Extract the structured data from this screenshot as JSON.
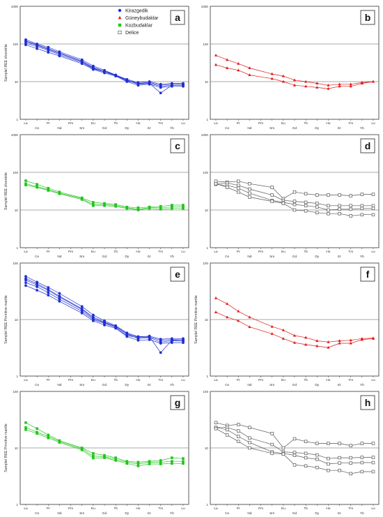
{
  "legend": {
    "items": [
      {
        "label": "Kirazgedik",
        "color": "#1f2fd1",
        "marker": "circle"
      },
      {
        "label": "Güneybudaklar",
        "color": "#e01a1a",
        "marker": "triangle"
      },
      {
        "label": "Kozbudaklar",
        "color": "#22c51c",
        "marker": "square"
      },
      {
        "label": "Delice",
        "color": "#555555",
        "marker": "open-square"
      }
    ]
  },
  "chart_data": [
    {
      "panel_label": "a",
      "type": "line",
      "log_y": true,
      "ylim": [
        1,
        1000
      ],
      "y_ticks": [
        "1",
        "10",
        "100",
        "1000"
      ],
      "gridlines_at": [
        10,
        100
      ],
      "ylabel": "Sample/ REE chondrite",
      "xlabel": "",
      "x_upper": [
        "La",
        "Pr",
        "Pm",
        "Eu",
        "Tb",
        "Ho",
        "Tm",
        "Lu"
      ],
      "x_lower": [
        "Ce",
        "Nd",
        "Sm",
        "Gd",
        "Dy",
        "Er",
        "Yb"
      ],
      "categories": [
        "La",
        "Ce",
        "Pr",
        "Nd",
        "Pm",
        "Sm",
        "Eu",
        "Gd",
        "Tb",
        "Dy",
        "Ho",
        "Er",
        "Tm",
        "Yb",
        "Lu"
      ],
      "color": "#1f2fd1",
      "marker": "circle",
      "series": [
        {
          "values": [
            130,
            100,
            82,
            62,
            null,
            38,
            26,
            20,
            15,
            11,
            9,
            9,
            5,
            8,
            8
          ]
        },
        {
          "values": [
            120,
            95,
            75,
            58,
            null,
            35,
            24,
            19,
            15,
            11,
            8.5,
            9,
            7.5,
            8,
            8
          ]
        },
        {
          "values": [
            105,
            85,
            68,
            52,
            null,
            32,
            22,
            18,
            14.5,
            10.5,
            9,
            9.5,
            8,
            8.5,
            8.5
          ]
        },
        {
          "values": [
            95,
            75,
            60,
            48,
            null,
            30,
            21,
            17,
            14,
            10,
            8,
            8.5,
            7,
            7.5,
            7.5
          ]
        },
        {
          "values": [
            115,
            92,
            72,
            56,
            null,
            34,
            23,
            18,
            15,
            11.5,
            9.5,
            10,
            8.5,
            9,
            9
          ]
        }
      ]
    },
    {
      "panel_label": "b",
      "type": "line",
      "log_y": true,
      "ylim": [
        1,
        1000
      ],
      "y_ticks": [
        "1",
        "10",
        "100",
        "1000"
      ],
      "gridlines_at": [
        10,
        100
      ],
      "ylabel": "",
      "xlabel": "",
      "x_upper": [
        "La",
        "Pr",
        "Pm",
        "Eu",
        "Tb",
        "Ho",
        "Tm",
        "Lu"
      ],
      "x_lower": [
        "Ce",
        "Nd",
        "Sm",
        "Gd",
        "Dy",
        "Er",
        "Yb"
      ],
      "categories": [
        "La",
        "Ce",
        "Pr",
        "Nd",
        "Pm",
        "Sm",
        "Eu",
        "Gd",
        "Tb",
        "Dy",
        "Ho",
        "Er",
        "Tm",
        "Yb",
        "Lu"
      ],
      "color": "#e01a1a",
      "marker": "triangle",
      "series": [
        {
          "values": [
            50,
            38,
            30,
            23,
            null,
            16,
            14,
            11,
            10,
            9,
            8,
            8.5,
            8.5,
            9.5,
            10
          ]
        },
        {
          "values": [
            28,
            23,
            20,
            15,
            null,
            12,
            10,
            8,
            7.5,
            7,
            6.5,
            7.5,
            7.5,
            9,
            10
          ]
        }
      ]
    },
    {
      "panel_label": "c",
      "type": "line",
      "log_y": true,
      "ylim": [
        1,
        1000
      ],
      "y_ticks": [
        "1",
        "10",
        "100",
        "1000"
      ],
      "gridlines_at": [
        10,
        100
      ],
      "ylabel": "Sample/ REE chondrite",
      "xlabel": "",
      "x_upper": [
        "La",
        "Pr",
        "Pm",
        "Eu",
        "Tb",
        "Ho",
        "Tm",
        "Lu"
      ],
      "x_lower": [
        "Ce",
        "Nd",
        "Sm",
        "Gd",
        "Dy",
        "Er",
        "Yb"
      ],
      "categories": [
        "La",
        "Ce",
        "Pr",
        "Nd",
        "Pm",
        "Sm",
        "Eu",
        "Gd",
        "Tb",
        "Dy",
        "Ho",
        "Er",
        "Tm",
        "Yb",
        "Lu"
      ],
      "color": "#22c51c",
      "marker": "square",
      "series": [
        {
          "values": [
            60,
            48,
            38,
            30,
            null,
            21,
            16,
            15,
            14,
            12,
            11.5,
            12,
            12.5,
            13.5,
            13.5
          ]
        },
        {
          "values": [
            50,
            42,
            35,
            28,
            null,
            20,
            14,
            14,
            13,
            11.5,
            10.5,
            11.5,
            11.5,
            12,
            12
          ]
        },
        {
          "values": [
            46,
            40,
            33,
            27,
            null,
            19,
            13,
            13,
            12.5,
            11,
            10,
            11,
            10.5,
            11,
            11
          ]
        }
      ]
    },
    {
      "panel_label": "d",
      "type": "line",
      "log_y": true,
      "ylim": [
        1,
        1000
      ],
      "y_ticks": [
        "1",
        "10",
        "100",
        "1000"
      ],
      "gridlines_at": [
        10,
        100
      ],
      "ylabel": "",
      "xlabel": "",
      "x_upper": [
        "La",
        "Pr",
        "Pm",
        "Eu",
        "Tb",
        "Ho",
        "Tm",
        "Lu"
      ],
      "x_lower": [
        "Ce",
        "Nd",
        "Sm",
        "Gd",
        "Dy",
        "Er",
        "Yb"
      ],
      "categories": [
        "La",
        "Ce",
        "Pr",
        "Nd",
        "Pm",
        "Sm",
        "Eu",
        "Gd",
        "Tb",
        "Dy",
        "Ho",
        "Er",
        "Tm",
        "Yb",
        "Lu"
      ],
      "color": "#555555",
      "marker": "open-square",
      "series": [
        {
          "values": [
            58,
            55,
            58,
            50,
            null,
            40,
            20,
            30,
            27,
            25,
            25,
            25,
            24,
            26,
            26
          ]
        },
        {
          "values": [
            50,
            52,
            45,
            36,
            null,
            25,
            18,
            17,
            16,
            15,
            13,
            13,
            13,
            13,
            13
          ]
        },
        {
          "values": [
            48,
            45,
            38,
            28,
            null,
            18,
            16,
            14,
            13,
            12,
            10,
            10.5,
            10.5,
            11,
            11
          ]
        },
        {
          "values": [
            50,
            40,
            30,
            22,
            null,
            17,
            15,
            10,
            9.5,
            8.5,
            8,
            8,
            7,
            7.5,
            7.5
          ]
        }
      ]
    },
    {
      "panel_label": "e",
      "type": "line",
      "log_y": true,
      "ylim": [
        1,
        100
      ],
      "y_ticks": [
        "1",
        "10",
        "100"
      ],
      "gridlines_at": [
        10
      ],
      "ylabel": "Sample/ REE Primitive mantle",
      "xlabel": "",
      "x_upper": [
        "La",
        "Pr",
        "Pm",
        "Eu",
        "Tb",
        "Ho",
        "Tm",
        "Lu"
      ],
      "x_lower": [
        "Ce",
        "Nd",
        "Sm",
        "Gd",
        "Dy",
        "Er",
        "Yb"
      ],
      "categories": [
        "La",
        "Ce",
        "Pr",
        "Nd",
        "Pm",
        "Sm",
        "Eu",
        "Gd",
        "Tb",
        "Dy",
        "Ho",
        "Er",
        "Tm",
        "Yb",
        "Lu"
      ],
      "color": "#1f2fd1",
      "marker": "circle",
      "series": [
        {
          "values": [
            58,
            46,
            37,
            29,
            null,
            17,
            12,
            9.5,
            7.8,
            5.8,
            5,
            5,
            2.6,
            4.3,
            4.2
          ]
        },
        {
          "values": [
            53,
            43,
            34,
            26,
            null,
            15.5,
            11,
            9,
            7.6,
            5.5,
            4.6,
            4.8,
            4,
            4.2,
            4.2
          ]
        },
        {
          "values": [
            45,
            38,
            30,
            23,
            null,
            14,
            10,
            8.5,
            7.3,
            5.2,
            4.8,
            4.9,
            4.3,
            4.4,
            4.4
          ]
        },
        {
          "values": [
            40,
            33,
            27,
            21,
            null,
            13,
            9.5,
            8,
            7,
            5,
            4.3,
            4.4,
            3.8,
            3.9,
            3.9
          ]
        },
        {
          "values": [
            50,
            41,
            33,
            25,
            null,
            15,
            10.5,
            8.8,
            7.5,
            5.6,
            4.9,
            5.1,
            4.5,
            4.6,
            4.6
          ]
        }
      ]
    },
    {
      "panel_label": "f",
      "type": "line",
      "log_y": true,
      "ylim": [
        1,
        100
      ],
      "y_ticks": [
        "1",
        "10",
        "100"
      ],
      "gridlines_at": [
        10
      ],
      "ylabel": "Sample/ REE Primitive mantle",
      "xlabel": "",
      "x_upper": [
        "La",
        "Pr",
        "Pm",
        "Eu",
        "Tb",
        "Ho",
        "Tm",
        "Lu"
      ],
      "x_lower": [
        "Ce",
        "Nd",
        "Sm",
        "Gd",
        "Dy",
        "Er",
        "Yb"
      ],
      "categories": [
        "La",
        "Ce",
        "Pr",
        "Nd",
        "Pm",
        "Sm",
        "Eu",
        "Gd",
        "Tb",
        "Dy",
        "Ho",
        "Er",
        "Tm",
        "Yb",
        "Lu"
      ],
      "color": "#e01a1a",
      "marker": "triangle",
      "series": [
        {
          "values": [
            24,
            19,
            14,
            11,
            null,
            7.5,
            6.5,
            5.2,
            4.8,
            4.2,
            4,
            4.2,
            4.3,
            4.6,
            4.7
          ]
        },
        {
          "values": [
            13.5,
            11,
            9.5,
            7.4,
            null,
            5.6,
            4.6,
            3.9,
            3.6,
            3.4,
            3.2,
            3.8,
            3.8,
            4.4,
            4.6
          ]
        }
      ]
    },
    {
      "panel_label": "g",
      "type": "line",
      "log_y": true,
      "ylim": [
        1,
        100
      ],
      "y_ticks": [
        "1",
        "10",
        "100"
      ],
      "gridlines_at": [
        10
      ],
      "ylabel": "Sample/ REE Primitive mantle",
      "xlabel": "",
      "x_upper": [
        "La",
        "Pr",
        "Pm",
        "Eu",
        "Tb",
        "Ho",
        "Tm",
        "Lu"
      ],
      "x_lower": [
        "Ce",
        "Nd",
        "Sm",
        "Gd",
        "Dy",
        "Er",
        "Yb"
      ],
      "categories": [
        "La",
        "Ce",
        "Pr",
        "Nd",
        "Pm",
        "Sm",
        "Eu",
        "Gd",
        "Tb",
        "Dy",
        "Ho",
        "Er",
        "Tm",
        "Yb",
        "Lu"
      ],
      "color": "#22c51c",
      "marker": "square",
      "series": [
        {
          "values": [
            28,
            22,
            17,
            13.5,
            null,
            10,
            8,
            7.4,
            6.7,
            5.8,
            5.6,
            5.8,
            6,
            6.7,
            6.5
          ]
        },
        {
          "values": [
            23,
            19,
            16,
            13,
            null,
            9.6,
            7.2,
            7,
            6.3,
            5.6,
            5.2,
            5.6,
            5.6,
            5.8,
            5.8
          ]
        },
        {
          "values": [
            21,
            18,
            15,
            12.5,
            null,
            9.2,
            6.6,
            6.7,
            6,
            5.3,
            4.8,
            5.2,
            5.2,
            5.3,
            5.3
          ]
        }
      ]
    },
    {
      "panel_label": "h",
      "type": "line",
      "log_y": true,
      "ylim": [
        1,
        100
      ],
      "y_ticks": [
        "1",
        "10",
        "100"
      ],
      "gridlines_at": [
        10
      ],
      "ylabel": "",
      "xlabel": "",
      "x_upper": [
        "La",
        "Pr",
        "Pm",
        "Eu",
        "Tb",
        "Ho",
        "Tm",
        "Lu"
      ],
      "x_lower": [
        "Ce",
        "Nd",
        "Sm",
        "Gd",
        "Dy",
        "Er",
        "Yb"
      ],
      "categories": [
        "La",
        "Ce",
        "Pr",
        "Nd",
        "Pm",
        "Sm",
        "Eu",
        "Gd",
        "Tb",
        "Dy",
        "Ho",
        "Er",
        "Tm",
        "Yb",
        "Lu"
      ],
      "color": "#555555",
      "marker": "open-square",
      "series": [
        {
          "values": [
            28,
            25,
            26,
            23,
            null,
            18,
            10,
            14.5,
            13,
            12,
            12,
            12,
            11,
            12,
            12
          ]
        },
        {
          "values": [
            23,
            23,
            20,
            15,
            null,
            11.5,
            8.5,
            8.3,
            8,
            7.5,
            6.5,
            6.7,
            6.7,
            6.8,
            6.8
          ]
        },
        {
          "values": [
            23,
            21,
            16,
            12.5,
            null,
            8.5,
            8,
            7.4,
            6.7,
            6.3,
            5.2,
            5.4,
            5.4,
            5.5,
            5.5
          ]
        },
        {
          "values": [
            22,
            17,
            13,
            10,
            null,
            8,
            7.8,
            5,
            4.8,
            4.5,
            4,
            4,
            3.5,
            3.8,
            3.8
          ]
        }
      ]
    }
  ]
}
